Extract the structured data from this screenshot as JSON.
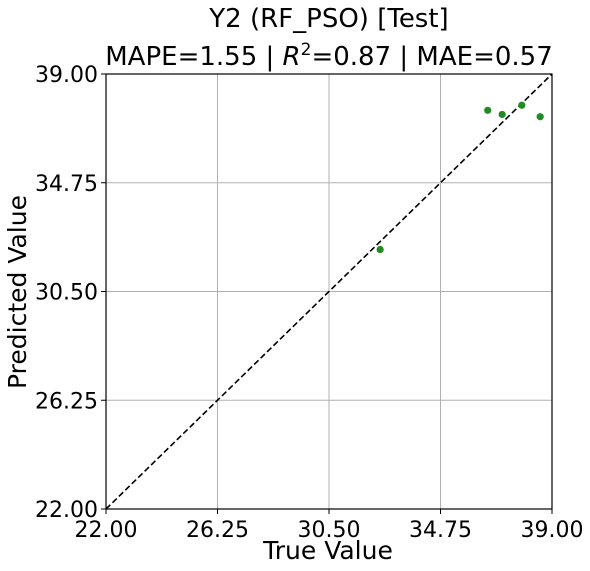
{
  "chart_data": {
    "type": "scatter",
    "title": "Y2 (RF_PSO) [Test]",
    "subtitle": {
      "mape_text": "MAPE=1.55 | ",
      "r2_symbol": "R",
      "r2_exponent": "2",
      "r2_rest": "=0.87 | MAE=0.57"
    },
    "xlabel": "True Value",
    "ylabel": "Predicted Value",
    "xlim": [
      22.0,
      39.0
    ],
    "ylim": [
      22.0,
      39.0
    ],
    "xticks": [
      22.0,
      26.25,
      30.5,
      34.75,
      39.0
    ],
    "yticks": [
      22.0,
      26.25,
      30.5,
      34.75,
      39.0
    ],
    "xtick_labels": [
      "22.00",
      "26.25",
      "30.50",
      "34.75",
      "39.00"
    ],
    "ytick_labels": [
      "22.00",
      "26.25",
      "30.50",
      "34.75",
      "39.00"
    ],
    "grid": true,
    "reference_line": {
      "style": "dashed",
      "from": [
        22.0,
        22.0
      ],
      "to": [
        39.0,
        39.0
      ],
      "color": "#000000"
    },
    "point_color": "#228b22",
    "points": [
      {
        "x": 32.45,
        "y": 32.14
      },
      {
        "x": 36.55,
        "y": 37.58
      },
      {
        "x": 37.1,
        "y": 37.42
      },
      {
        "x": 37.85,
        "y": 37.78
      },
      {
        "x": 38.55,
        "y": 37.33
      }
    ]
  }
}
